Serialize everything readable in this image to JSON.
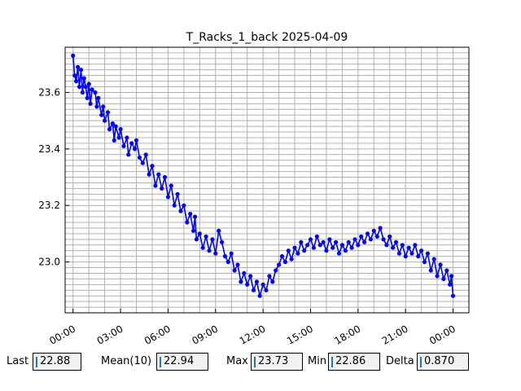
{
  "chart_data": {
    "type": "line",
    "title": "T_Racks_1_back 2025-04-09",
    "xlabel": "",
    "ylabel": "",
    "x_unit": "hours",
    "xlim": [
      -0.5,
      25.0
    ],
    "ylim": [
      22.82,
      23.76
    ],
    "x_ticks": [
      {
        "value": 0,
        "label": "00:00"
      },
      {
        "value": 3,
        "label": "03:00"
      },
      {
        "value": 6,
        "label": "06:00"
      },
      {
        "value": 9,
        "label": "09:00"
      },
      {
        "value": 12,
        "label": "12:00"
      },
      {
        "value": 15,
        "label": "15:00"
      },
      {
        "value": 18,
        "label": "18:00"
      },
      {
        "value": 21,
        "label": "21:00"
      },
      {
        "value": 24,
        "label": "00:00"
      }
    ],
    "y_ticks": [
      {
        "value": 23.0,
        "label": "23.0"
      },
      {
        "value": 23.2,
        "label": "23.2"
      },
      {
        "value": 23.4,
        "label": "23.4"
      },
      {
        "value": 23.6,
        "label": "23.6"
      }
    ],
    "grid": true,
    "series": [
      {
        "color": "#0000ff",
        "marker": "circle",
        "points": [
          [
            0.0,
            23.73
          ],
          [
            0.1,
            23.66
          ],
          [
            0.2,
            23.64
          ],
          [
            0.3,
            23.69
          ],
          [
            0.4,
            23.62
          ],
          [
            0.5,
            23.68
          ],
          [
            0.6,
            23.6
          ],
          [
            0.7,
            23.65
          ],
          [
            0.8,
            23.62
          ],
          [
            0.9,
            23.58
          ],
          [
            1.0,
            23.63
          ],
          [
            1.1,
            23.56
          ],
          [
            1.2,
            23.61
          ],
          [
            1.4,
            23.6
          ],
          [
            1.5,
            23.55
          ],
          [
            1.6,
            23.58
          ],
          [
            1.8,
            23.52
          ],
          [
            1.9,
            23.55
          ],
          [
            2.0,
            23.5
          ],
          [
            2.2,
            23.53
          ],
          [
            2.3,
            23.47
          ],
          [
            2.5,
            23.49
          ],
          [
            2.6,
            23.43
          ],
          [
            2.7,
            23.48
          ],
          [
            2.9,
            23.44
          ],
          [
            3.0,
            23.47
          ],
          [
            3.2,
            23.41
          ],
          [
            3.4,
            23.44
          ],
          [
            3.5,
            23.38
          ],
          [
            3.7,
            23.42
          ],
          [
            3.9,
            23.4
          ],
          [
            4.0,
            23.43
          ],
          [
            4.2,
            23.37
          ],
          [
            4.4,
            23.35
          ],
          [
            4.6,
            23.38
          ],
          [
            4.8,
            23.31
          ],
          [
            5.0,
            23.34
          ],
          [
            5.2,
            23.27
          ],
          [
            5.4,
            23.31
          ],
          [
            5.6,
            23.26
          ],
          [
            5.8,
            23.3
          ],
          [
            6.0,
            23.23
          ],
          [
            6.2,
            23.27
          ],
          [
            6.4,
            23.2
          ],
          [
            6.6,
            23.24
          ],
          [
            6.8,
            23.18
          ],
          [
            7.0,
            23.2
          ],
          [
            7.2,
            23.14
          ],
          [
            7.4,
            23.17
          ],
          [
            7.6,
            23.11
          ],
          [
            7.7,
            23.16
          ],
          [
            7.8,
            23.08
          ],
          [
            8.0,
            23.1
          ],
          [
            8.2,
            23.05
          ],
          [
            8.4,
            23.09
          ],
          [
            8.6,
            23.04
          ],
          [
            8.8,
            23.08
          ],
          [
            9.0,
            23.03
          ],
          [
            9.2,
            23.11
          ],
          [
            9.4,
            23.07
          ],
          [
            9.6,
            23.02
          ],
          [
            9.8,
            23.0
          ],
          [
            10.0,
            23.03
          ],
          [
            10.2,
            22.97
          ],
          [
            10.4,
            22.99
          ],
          [
            10.6,
            22.93
          ],
          [
            10.8,
            22.96
          ],
          [
            11.0,
            22.92
          ],
          [
            11.2,
            22.95
          ],
          [
            11.4,
            22.9
          ],
          [
            11.6,
            22.93
          ],
          [
            11.8,
            22.88
          ],
          [
            12.0,
            22.92
          ],
          [
            12.2,
            22.9
          ],
          [
            12.4,
            22.95
          ],
          [
            12.6,
            22.93
          ],
          [
            12.8,
            22.97
          ],
          [
            13.0,
            22.99
          ],
          [
            13.2,
            23.02
          ],
          [
            13.4,
            23.0
          ],
          [
            13.6,
            23.04
          ],
          [
            13.8,
            23.01
          ],
          [
            14.0,
            23.05
          ],
          [
            14.2,
            23.03
          ],
          [
            14.4,
            23.07
          ],
          [
            14.6,
            23.04
          ],
          [
            14.8,
            23.06
          ],
          [
            15.0,
            23.08
          ],
          [
            15.2,
            23.05
          ],
          [
            15.4,
            23.09
          ],
          [
            15.6,
            23.06
          ],
          [
            15.8,
            23.07
          ],
          [
            16.0,
            23.04
          ],
          [
            16.2,
            23.08
          ],
          [
            16.4,
            23.05
          ],
          [
            16.6,
            23.07
          ],
          [
            16.8,
            23.03
          ],
          [
            17.0,
            23.06
          ],
          [
            17.2,
            23.04
          ],
          [
            17.4,
            23.07
          ],
          [
            17.6,
            23.05
          ],
          [
            17.8,
            23.08
          ],
          [
            18.0,
            23.06
          ],
          [
            18.2,
            23.09
          ],
          [
            18.4,
            23.07
          ],
          [
            18.6,
            23.1
          ],
          [
            18.8,
            23.08
          ],
          [
            19.0,
            23.11
          ],
          [
            19.2,
            23.09
          ],
          [
            19.4,
            23.12
          ],
          [
            19.6,
            23.08
          ],
          [
            19.8,
            23.06
          ],
          [
            20.0,
            23.09
          ],
          [
            20.2,
            23.05
          ],
          [
            20.4,
            23.07
          ],
          [
            20.6,
            23.03
          ],
          [
            20.8,
            23.06
          ],
          [
            21.0,
            23.02
          ],
          [
            21.2,
            23.05
          ],
          [
            21.4,
            23.03
          ],
          [
            21.6,
            23.06
          ],
          [
            21.8,
            23.02
          ],
          [
            22.0,
            23.04
          ],
          [
            22.2,
            23.0
          ],
          [
            22.4,
            23.03
          ],
          [
            22.6,
            22.97
          ],
          [
            22.8,
            23.01
          ],
          [
            23.0,
            22.95
          ],
          [
            23.2,
            22.99
          ],
          [
            23.4,
            22.94
          ],
          [
            23.6,
            22.97
          ],
          [
            23.8,
            22.92
          ],
          [
            23.9,
            22.95
          ],
          [
            24.0,
            22.88
          ]
        ]
      }
    ]
  },
  "stats": {
    "last_label": "Last",
    "last_value": "22.88",
    "mean_label": "Mean(10)",
    "mean_value": "22.94",
    "max_label": "Max",
    "max_value": "23.73",
    "min_label": "Min",
    "min_value": "22.86",
    "delta_label": "Delta",
    "delta_value": "0.870"
  }
}
